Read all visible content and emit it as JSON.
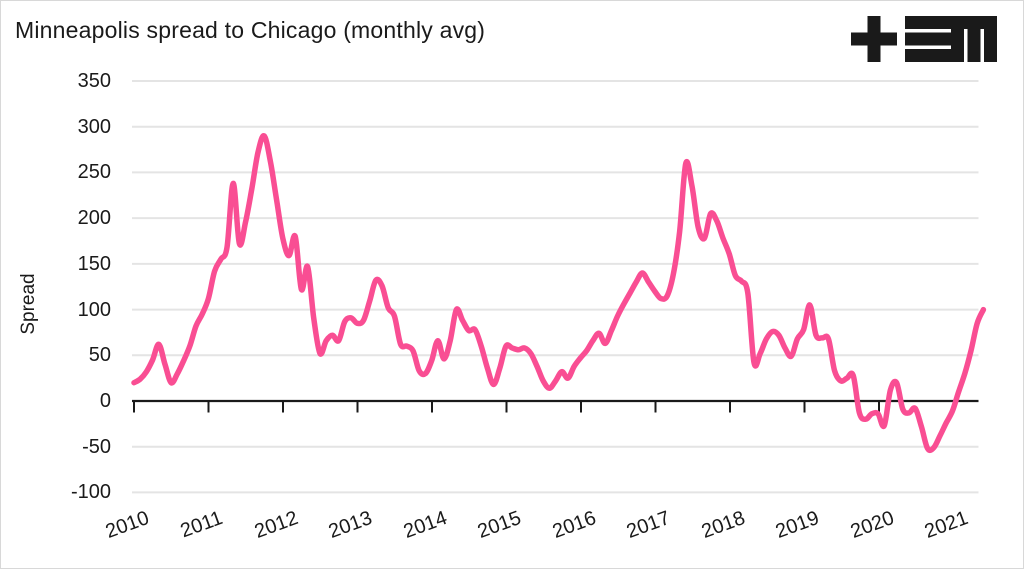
{
  "header": {
    "title": "Minneapolis spread to Chicago (monthly avg)",
    "logo_name": "tem-logo"
  },
  "colors": {
    "line": "#f94e93",
    "axis": "#1a1a1a",
    "grid": "#e4e4e4",
    "text": "#1a1a1a",
    "background": "#ffffff"
  },
  "chart_data": {
    "type": "line",
    "title": "Minneapolis spread to Chicago (monthly avg)",
    "ylabel": "Spread",
    "series_name": "Minneapolis spread to Chicago",
    "x_frequency": "monthly",
    "x_start": "2010-01",
    "x_end": "2021-06",
    "x_tick_labels": [
      "2010",
      "2011",
      "2012",
      "2013",
      "2014",
      "2015",
      "2016",
      "2017",
      "2018",
      "2019",
      "2020",
      "2021"
    ],
    "y_ticks": [
      350,
      300,
      250,
      200,
      150,
      100,
      50,
      0,
      -50,
      -100
    ],
    "ylim": [
      -100,
      350
    ],
    "grid": "horizontal",
    "zero_line": true,
    "legend": "none",
    "values": [
      20,
      24,
      32,
      45,
      62,
      40,
      20,
      30,
      44,
      60,
      82,
      95,
      112,
      142,
      155,
      168,
      238,
      172,
      196,
      232,
      272,
      290,
      262,
      220,
      178,
      159,
      180,
      122,
      147,
      90,
      52,
      66,
      72,
      66,
      87,
      91,
      85,
      88,
      109,
      132,
      126,
      102,
      93,
      62,
      60,
      55,
      33,
      30,
      44,
      66,
      46,
      66,
      100,
      88,
      77,
      78,
      60,
      36,
      18,
      36,
      60,
      58,
      56,
      58,
      52,
      38,
      22,
      14,
      22,
      32,
      25,
      38,
      47,
      55,
      66,
      74,
      63,
      77,
      93,
      106,
      118,
      130,
      140,
      130,
      120,
      112,
      115,
      139,
      185,
      260,
      235,
      190,
      178,
      205,
      197,
      178,
      161,
      137,
      131,
      118,
      42,
      52,
      68,
      76,
      72,
      58,
      49,
      68,
      78,
      105,
      72,
      69,
      68,
      33,
      22,
      25,
      28,
      -13,
      -20,
      -14,
      -14,
      -27,
      12,
      20,
      -9,
      -13,
      -8,
      -28,
      -52,
      -51,
      -38,
      -24,
      -11,
      10,
      30,
      55,
      85,
      100
    ]
  }
}
